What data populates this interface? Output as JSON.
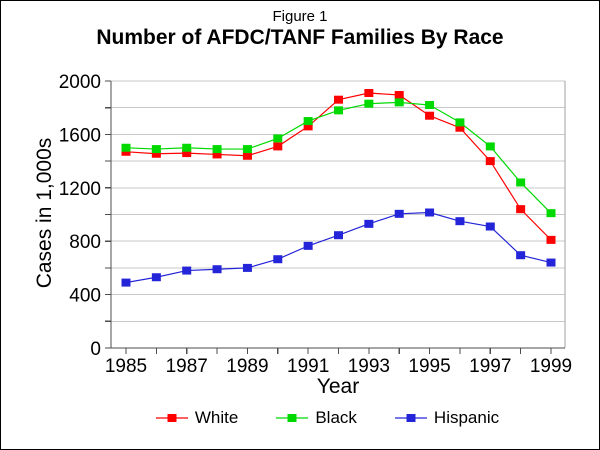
{
  "figure_label": "Figure 1",
  "title": "Number of AFDC/TANF Families By Race",
  "chart_data": {
    "type": "line",
    "title": "Number of AFDC/TANF Families By Race",
    "subtitle": "Figure 1",
    "xlabel": "Year",
    "ylabel": "Cases in 1,000s",
    "x": [
      1985,
      1986,
      1987,
      1988,
      1989,
      1990,
      1991,
      1992,
      1993,
      1994,
      1995,
      1996,
      1997,
      1998,
      1999
    ],
    "series": [
      {
        "name": "White",
        "color": "#ff0000",
        "marker": "square",
        "values": [
          1470,
          1455,
          1460,
          1450,
          1440,
          1510,
          1660,
          1860,
          1910,
          1895,
          1740,
          1650,
          1400,
          1040,
          810
        ]
      },
      {
        "name": "Black",
        "color": "#00d900",
        "marker": "square",
        "values": [
          1500,
          1490,
          1500,
          1490,
          1490,
          1570,
          1700,
          1780,
          1830,
          1840,
          1820,
          1690,
          1510,
          1240,
          1010
        ]
      },
      {
        "name": "Hispanic",
        "color": "#2424d9",
        "marker": "square",
        "values": [
          490,
          530,
          580,
          590,
          600,
          665,
          765,
          845,
          930,
          1005,
          1015,
          950,
          910,
          695,
          640
        ]
      }
    ],
    "ylim": [
      0,
      2000
    ],
    "gridline_step": 200,
    "grid": true,
    "y_tick_labels": [
      0,
      400,
      800,
      1200,
      1600,
      2000
    ],
    "x_tick_labels": [
      1985,
      1987,
      1989,
      1991,
      1993,
      1995,
      1997,
      1999
    ],
    "legend_position": "bottom"
  },
  "colors": {
    "gridline": "#c8c8c8",
    "plot_border": "#a0a0a0",
    "axis": "#4d4d4d",
    "text": "#000000",
    "background": "#ffffff"
  }
}
